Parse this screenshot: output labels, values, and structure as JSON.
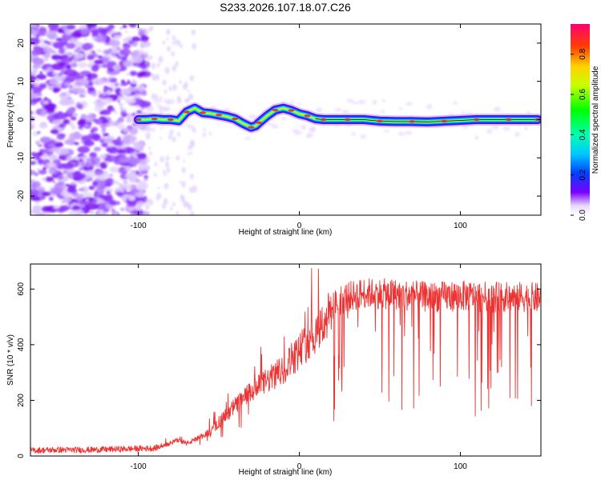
{
  "title": "S233.2026.107.18.07.C26",
  "chart_data": [
    {
      "type": "heatmap",
      "xlabel": "Height of straight line (km)",
      "ylabel": "Frequency (Hz)",
      "xlim": [
        -167,
        150
      ],
      "ylim": [
        -25,
        25
      ],
      "xticks": [
        -100,
        0,
        100
      ],
      "xtick_labels": [
        "-100",
        "0",
        "100"
      ],
      "yticks": [
        -20,
        -10,
        0,
        10,
        20
      ],
      "ytick_labels": [
        "-20",
        "-10",
        "0",
        "10",
        "20"
      ],
      "ridge": {
        "x": [
          -100,
          -95,
          -90,
          -85,
          -80,
          -75,
          -70,
          -65,
          -60,
          -55,
          -50,
          -45,
          -40,
          -35,
          -30,
          -27,
          -25,
          -20,
          -15,
          -10,
          -5,
          0,
          5,
          10,
          15,
          20,
          30,
          40,
          50,
          60,
          70,
          80,
          90,
          100,
          110,
          120,
          130,
          140,
          148
        ],
        "y": [
          0,
          0,
          0.2,
          0,
          0,
          -0.3,
          2,
          3,
          1.8,
          1.6,
          1.2,
          0.8,
          0.2,
          -1,
          -2,
          -1.6,
          -0.8,
          1,
          2.5,
          3,
          2.4,
          1.5,
          1,
          0.2,
          0,
          0,
          0,
          0,
          -0.4,
          -0.5,
          -0.5,
          -0.6,
          -0.4,
          -0.2,
          0,
          0,
          0,
          0,
          0
        ]
      },
      "colorbar": {
        "label": "Normalized spectral amplitude",
        "range": [
          0,
          0.95
        ],
        "ticks": [
          0.0,
          0.2,
          0.4,
          0.6,
          0.8
        ],
        "tick_labels": [
          "0.0",
          "0.2",
          "0.4",
          "0.6",
          "0.8"
        ]
      }
    },
    {
      "type": "line",
      "xlabel": "Height of straight line (km)",
      "ylabel": "SNR (10 * v/v)",
      "xlim": [
        -167,
        150
      ],
      "ylim": [
        0,
        690
      ],
      "xticks": [
        -100,
        0,
        100
      ],
      "xtick_labels": [
        "-100",
        "0",
        "100"
      ],
      "yticks": [
        0,
        200,
        400,
        600
      ],
      "ytick_labels": [
        "0",
        "200",
        "400",
        "600"
      ],
      "series": [
        {
          "name": "SNR",
          "color": "#ee3333",
          "x": [
            -167,
            -150,
            -130,
            -110,
            -90,
            -80,
            -75,
            -70,
            -60,
            -55,
            -50,
            -40,
            -30,
            -20,
            -10,
            -5,
            0,
            10,
            15,
            20,
            25,
            30,
            40,
            60,
            80,
            100,
            120,
            140,
            150
          ],
          "y": [
            20,
            22,
            22,
            25,
            28,
            45,
            60,
            45,
            70,
            90,
            120,
            180,
            230,
            270,
            310,
            350,
            380,
            440,
            480,
            520,
            550,
            560,
            575,
            570,
            560,
            565,
            560,
            560,
            555
          ]
        }
      ]
    }
  ]
}
